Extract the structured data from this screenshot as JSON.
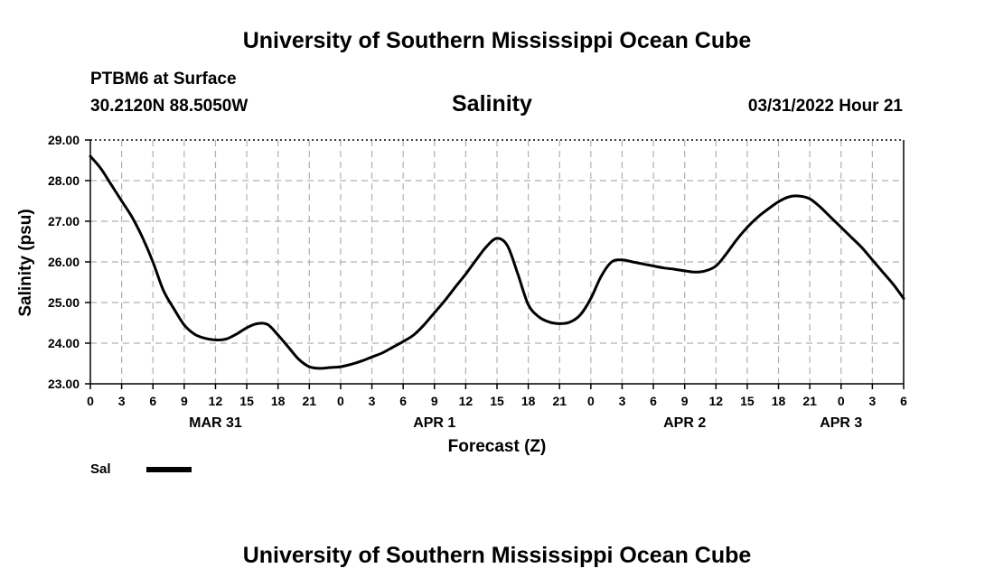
{
  "page": {
    "main_title": "University of Southern Mississippi Ocean Cube",
    "footer_title": "University of Southern Mississippi Ocean Cube",
    "station": "PTBM6 at Surface",
    "coords": "30.2120N  88.5050W",
    "timestamp": "03/31/2022 Hour 21"
  },
  "chart_data": {
    "type": "line",
    "title": "Salinity",
    "xlabel": "Forecast (Z)",
    "ylabel": "Salinity (psu)",
    "x_unit": "hours since 2022-03-31 00Z",
    "xlim": [
      0,
      78
    ],
    "ylim": [
      23.0,
      29.0
    ],
    "y_ticks": [
      23.0,
      24.0,
      25.0,
      26.0,
      27.0,
      28.0,
      29.0
    ],
    "y_tick_labels": [
      "23.00",
      "24.00",
      "25.00",
      "26.00",
      "27.00",
      "28.00",
      "29.00"
    ],
    "x_ticks": [
      0,
      3,
      6,
      9,
      12,
      15,
      18,
      21,
      24,
      27,
      30,
      33,
      36,
      39,
      42,
      45,
      48,
      51,
      54,
      57,
      60,
      63,
      66,
      69,
      72,
      75,
      78
    ],
    "x_tick_labels": [
      "0",
      "3",
      "6",
      "9",
      "12",
      "15",
      "18",
      "21",
      "0",
      "3",
      "6",
      "9",
      "12",
      "15",
      "18",
      "21",
      "0",
      "3",
      "6",
      "9",
      "12",
      "15",
      "18",
      "21",
      "0",
      "3",
      "6"
    ],
    "day_labels": [
      {
        "x": 12,
        "label": "MAR 31"
      },
      {
        "x": 33,
        "label": "APR 1"
      },
      {
        "x": 57,
        "label": "APR 2"
      },
      {
        "x": 72,
        "label": "APR 3"
      }
    ],
    "grid": true,
    "legend": [
      {
        "name": "Sal",
        "position": "bottom-left"
      }
    ],
    "series": [
      {
        "name": "Sal",
        "x": [
          0,
          1,
          2,
          3,
          4,
          5,
          6,
          7,
          8,
          9,
          10,
          11,
          12,
          13,
          14,
          15,
          16,
          17,
          18,
          19,
          20,
          21,
          22,
          23,
          24,
          25,
          26,
          27,
          28,
          29,
          30,
          31,
          32,
          33,
          34,
          35,
          36,
          37,
          38,
          39,
          40,
          41,
          42,
          43,
          44,
          45,
          46,
          47,
          48,
          49,
          50,
          51,
          52,
          53,
          54,
          55,
          56,
          57,
          58,
          59,
          60,
          61,
          62,
          63,
          64,
          65,
          66,
          67,
          68,
          69,
          70,
          71,
          72,
          73,
          74,
          75,
          76,
          77,
          78
        ],
        "values": [
          28.6,
          28.3,
          27.9,
          27.5,
          27.1,
          26.6,
          26.0,
          25.3,
          24.85,
          24.45,
          24.22,
          24.12,
          24.08,
          24.1,
          24.22,
          24.38,
          24.48,
          24.46,
          24.2,
          23.9,
          23.6,
          23.42,
          23.38,
          23.4,
          23.42,
          23.48,
          23.56,
          23.66,
          23.76,
          23.9,
          24.04,
          24.2,
          24.45,
          24.75,
          25.05,
          25.38,
          25.7,
          26.05,
          26.38,
          26.58,
          26.4,
          25.7,
          24.95,
          24.65,
          24.52,
          24.48,
          24.52,
          24.7,
          25.1,
          25.65,
          26.0,
          26.05,
          26.0,
          25.95,
          25.9,
          25.85,
          25.82,
          25.78,
          25.75,
          25.78,
          25.9,
          26.2,
          26.55,
          26.85,
          27.1,
          27.3,
          27.48,
          27.6,
          27.62,
          27.55,
          27.35,
          27.1,
          26.85,
          26.6,
          26.35,
          26.05,
          25.75,
          25.45,
          25.1
        ]
      }
    ]
  }
}
